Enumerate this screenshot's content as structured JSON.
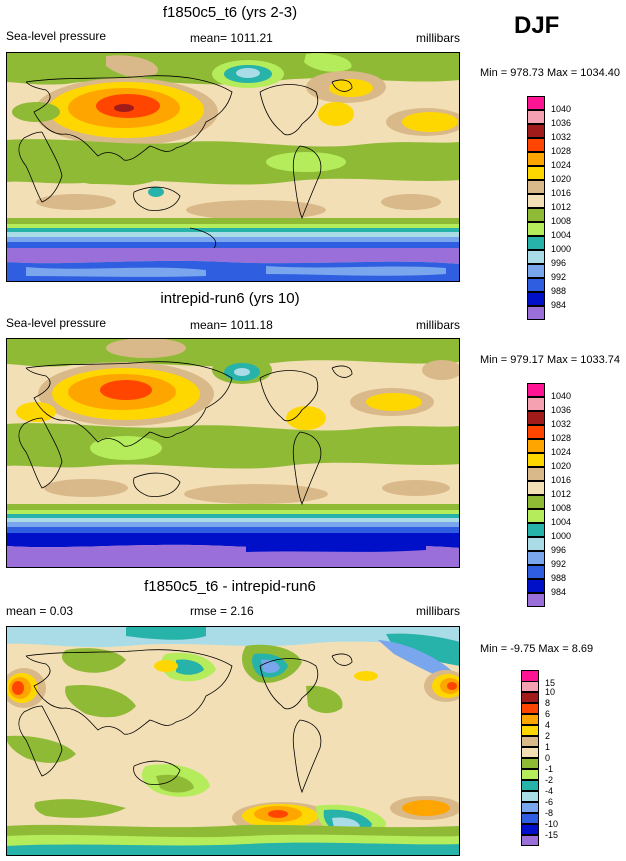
{
  "season": "DJF",
  "colors": {
    "c984": "#9a6fd9",
    "c988": "#0010c8",
    "c992": "#2f5fe0",
    "c996": "#7aa6ee",
    "c1000": "#a9dce6",
    "c1004": "#27b3a9",
    "c1008": "#b5ec5b",
    "c1012": "#8fba36",
    "c1016": "#f3dfb6",
    "c1020": "#d9b989",
    "c1024": "#ffd700",
    "c1028": "#ffa500",
    "c1032": "#ff4500",
    "c1036": "#a11b1b",
    "c1040": "#f5a1b1",
    "cTop": "#ff1493"
  },
  "panels": [
    {
      "title": "f1850c5_t6 (yrs 2-3)",
      "left_label": "Sea-level pressure",
      "center_label": "mean= 1011.21",
      "right_label": "millibars",
      "stats": "Min = 978.73 Max = 1034.40"
    },
    {
      "title": "intrepid-run6 (yrs 10)",
      "left_label": "Sea-level pressure",
      "center_label": "mean= 1011.18",
      "right_label": "millibars",
      "stats": "Min = 979.17 Max = 1033.74"
    },
    {
      "title": "f1850c5_t6 - intrepid-run6",
      "left_label": "mean =  0.03",
      "center_label": "rmse =  2.16",
      "right_label": "millibars",
      "stats": "Min =  -9.75 Max =  8.69"
    }
  ],
  "chart_data": [
    {
      "type": "heatmap",
      "title": "f1850c5_t6 (yrs 2-3)",
      "variable": "Sea-level pressure",
      "units": "millibars",
      "mean": 1011.21,
      "min": 978.73,
      "max": 1034.4,
      "contour_levels": [
        984,
        988,
        992,
        996,
        1000,
        1004,
        1008,
        1012,
        1016,
        1020,
        1024,
        1028,
        1032,
        1036,
        1040
      ],
      "legend_labels": [
        "1040",
        "1036",
        "1032",
        "1028",
        "1024",
        "1020",
        "1016",
        "1012",
        "1008",
        "1004",
        "1000",
        "996",
        "992",
        "988",
        "984"
      ],
      "legend_colors": [
        "#ff1493",
        "#f5a1b1",
        "#a11b1b",
        "#ff4500",
        "#ffa500",
        "#ffd700",
        "#d9b989",
        "#f3dfb6",
        "#8fba36",
        "#b5ec5b",
        "#27b3a9",
        "#a9dce6",
        "#7aa6ee",
        "#2f5fe0",
        "#0010c8",
        "#9a6fd9"
      ]
    },
    {
      "type": "heatmap",
      "title": "intrepid-run6 (yrs 10)",
      "variable": "Sea-level pressure",
      "units": "millibars",
      "mean": 1011.18,
      "min": 979.17,
      "max": 1033.74,
      "contour_levels": [
        984,
        988,
        992,
        996,
        1000,
        1004,
        1008,
        1012,
        1016,
        1020,
        1024,
        1028,
        1032,
        1036,
        1040
      ],
      "legend_labels": [
        "1040",
        "1036",
        "1032",
        "1028",
        "1024",
        "1020",
        "1016",
        "1012",
        "1008",
        "1004",
        "1000",
        "996",
        "992",
        "988",
        "984"
      ],
      "legend_colors": [
        "#ff1493",
        "#f5a1b1",
        "#a11b1b",
        "#ff4500",
        "#ffa500",
        "#ffd700",
        "#d9b989",
        "#f3dfb6",
        "#8fba36",
        "#b5ec5b",
        "#27b3a9",
        "#a9dce6",
        "#7aa6ee",
        "#2f5fe0",
        "#0010c8",
        "#9a6fd9"
      ]
    },
    {
      "type": "heatmap",
      "title": "f1850c5_t6 - intrepid-run6",
      "units": "millibars",
      "mean": 0.03,
      "rmse": 2.16,
      "min": -9.75,
      "max": 8.69,
      "contour_levels": [
        -15,
        -10,
        -8,
        -6,
        -4,
        -2,
        -1,
        0,
        1,
        2,
        4,
        6,
        8,
        10,
        15
      ],
      "legend_labels": [
        "15",
        "10",
        "8",
        "6",
        "4",
        "2",
        "1",
        "0",
        "-1",
        "-2",
        "-4",
        "-6",
        "-8",
        "-10",
        "-15"
      ],
      "legend_colors": [
        "#ff1493",
        "#f5a1b1",
        "#a11b1b",
        "#ff4500",
        "#ffa500",
        "#ffd700",
        "#d9b989",
        "#f3dfb6",
        "#8fba36",
        "#b5ec5b",
        "#27b3a9",
        "#a9dce6",
        "#7aa6ee",
        "#2f5fe0",
        "#0010c8",
        "#9a6fd9"
      ]
    }
  ]
}
